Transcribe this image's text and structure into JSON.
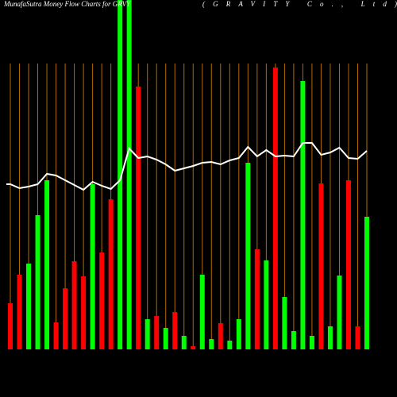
{
  "chart_data": {
    "type": "bar",
    "title": "MunafaSutra  Money Flow  Charts for GRVY",
    "subtitle": "(GRAVITY Co., Ltd)",
    "ylim": [
      0,
      440
    ],
    "grid": true,
    "grid_color": "#b36b00",
    "line_color": "#ffffff",
    "values": [
      58,
      94,
      108,
      169,
      213,
      34,
      77,
      111,
      92,
      208,
      122,
      189,
      460,
      460,
      331,
      38,
      42,
      27,
      47,
      17,
      4,
      94,
      13,
      33,
      11,
      38,
      235,
      126,
      112,
      355,
      66,
      23,
      338,
      17,
      209,
      29,
      93,
      213,
      29,
      167
    ],
    "colors": [
      "#ff0000",
      "#ff0000",
      "#00ff00",
      "#00ff00",
      "#00ff00",
      "#ff0000",
      "#ff0000",
      "#ff0000",
      "#ff0000",
      "#00ff00",
      "#ff0000",
      "#ff0000",
      "#00ff00",
      "#00ff00",
      "#ff0000",
      "#00ff00",
      "#ff0000",
      "#00ff00",
      "#ff0000",
      "#00ff00",
      "#ff0000",
      "#00ff00",
      "#00ff00",
      "#ff0000",
      "#00ff00",
      "#00ff00",
      "#00ff00",
      "#ff0000",
      "#00ff00",
      "#ff0000",
      "#00ff00",
      "#00ff00",
      "#00ff00",
      "#00ff00",
      "#ff0000",
      "#00ff00",
      "#00ff00",
      "#ff0000",
      "#ff0000",
      "#00ff00"
    ],
    "line_values": [
      208,
      203,
      205,
      208,
      221,
      219,
      213,
      207,
      201,
      211,
      206,
      202,
      213,
      253,
      241,
      243,
      239,
      233,
      225,
      228,
      231,
      235,
      236,
      233,
      238,
      241,
      255,
      243,
      251,
      243,
      244,
      243,
      260,
      260,
      245,
      248,
      254,
      241,
      240,
      250
    ]
  }
}
